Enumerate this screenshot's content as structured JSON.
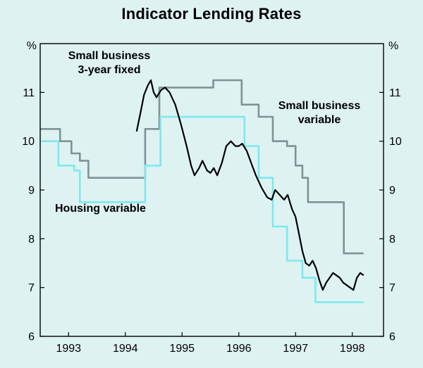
{
  "colors": {
    "background": "#def2f2",
    "plot_border": "#000000",
    "text": "#000000",
    "series_fixed_black": "#000000",
    "series_variable_gray": "#7f9296",
    "series_housing_cyan": "#7de9ed"
  },
  "annotations": {
    "fixed": {
      "line1": "Small business",
      "line2": "3-year fixed"
    },
    "variable": {
      "line1": "Small business",
      "line2": "variable"
    },
    "housing": {
      "line1": "Housing variable"
    }
  },
  "chart_data": {
    "type": "line",
    "title": "Indicator Lending Rates",
    "y_unit": "%",
    "x_range": [
      1992.5,
      1998.55
    ],
    "y_range": [
      6,
      12
    ],
    "y_ticks": [
      6,
      7,
      8,
      9,
      10,
      11
    ],
    "x_ticks": [
      1993,
      1994,
      1995,
      1996,
      1997,
      1998
    ],
    "x_tick_labels": [
      "1993",
      "1994",
      "1995",
      "1996",
      "1997",
      "1998"
    ],
    "grid": false,
    "legend": "in-plot text annotations",
    "series": [
      {
        "name": "Small business variable",
        "color_key": "series_variable_gray",
        "width": 2.6,
        "points": [
          [
            1992.5,
            10.25
          ],
          [
            1992.85,
            10.25
          ],
          [
            1992.85,
            10.0
          ],
          [
            1993.05,
            10.0
          ],
          [
            1993.05,
            9.75
          ],
          [
            1993.2,
            9.75
          ],
          [
            1993.2,
            9.6
          ],
          [
            1993.35,
            9.6
          ],
          [
            1993.35,
            9.25
          ],
          [
            1994.35,
            9.25
          ],
          [
            1994.35,
            10.25
          ],
          [
            1994.6,
            10.25
          ],
          [
            1994.6,
            11.1
          ],
          [
            1995.55,
            11.1
          ],
          [
            1995.55,
            11.25
          ],
          [
            1996.05,
            11.25
          ],
          [
            1996.05,
            10.75
          ],
          [
            1996.35,
            10.75
          ],
          [
            1996.35,
            10.5
          ],
          [
            1996.6,
            10.5
          ],
          [
            1996.6,
            10.0
          ],
          [
            1996.85,
            10.0
          ],
          [
            1996.85,
            9.9
          ],
          [
            1997.0,
            9.9
          ],
          [
            1997.0,
            9.5
          ],
          [
            1997.12,
            9.5
          ],
          [
            1997.12,
            9.25
          ],
          [
            1997.22,
            9.25
          ],
          [
            1997.22,
            8.75
          ],
          [
            1997.85,
            8.75
          ],
          [
            1997.85,
            7.7
          ],
          [
            1998.2,
            7.7
          ]
        ]
      },
      {
        "name": "Housing variable",
        "color_key": "series_housing_cyan",
        "width": 2.6,
        "points": [
          [
            1992.5,
            10.0
          ],
          [
            1992.82,
            10.0
          ],
          [
            1992.82,
            9.5
          ],
          [
            1993.1,
            9.5
          ],
          [
            1993.1,
            9.4
          ],
          [
            1993.2,
            9.4
          ],
          [
            1993.2,
            8.75
          ],
          [
            1994.35,
            8.75
          ],
          [
            1994.35,
            9.5
          ],
          [
            1994.62,
            9.5
          ],
          [
            1994.62,
            10.5
          ],
          [
            1996.1,
            10.5
          ],
          [
            1996.1,
            9.9
          ],
          [
            1996.35,
            9.9
          ],
          [
            1996.35,
            9.25
          ],
          [
            1996.6,
            9.25
          ],
          [
            1996.6,
            8.25
          ],
          [
            1996.85,
            8.25
          ],
          [
            1996.85,
            7.55
          ],
          [
            1997.12,
            7.55
          ],
          [
            1997.12,
            7.2
          ],
          [
            1997.35,
            7.2
          ],
          [
            1997.35,
            6.7
          ],
          [
            1998.2,
            6.7
          ]
        ]
      },
      {
        "name": "Small business 3-year fixed",
        "color_key": "series_fixed_black",
        "width": 2.2,
        "points": [
          [
            1994.2,
            10.2
          ],
          [
            1994.27,
            10.6
          ],
          [
            1994.33,
            10.95
          ],
          [
            1994.4,
            11.15
          ],
          [
            1994.45,
            11.25
          ],
          [
            1994.5,
            11.0
          ],
          [
            1994.55,
            10.9
          ],
          [
            1994.63,
            11.05
          ],
          [
            1994.7,
            11.1
          ],
          [
            1994.78,
            11.0
          ],
          [
            1994.88,
            10.75
          ],
          [
            1994.98,
            10.35
          ],
          [
            1995.08,
            9.9
          ],
          [
            1995.16,
            9.5
          ],
          [
            1995.22,
            9.3
          ],
          [
            1995.3,
            9.45
          ],
          [
            1995.36,
            9.6
          ],
          [
            1995.44,
            9.4
          ],
          [
            1995.5,
            9.35
          ],
          [
            1995.56,
            9.45
          ],
          [
            1995.62,
            9.3
          ],
          [
            1995.7,
            9.55
          ],
          [
            1995.78,
            9.9
          ],
          [
            1995.86,
            10.0
          ],
          [
            1995.94,
            9.9
          ],
          [
            1996.0,
            9.9
          ],
          [
            1996.06,
            9.95
          ],
          [
            1996.14,
            9.8
          ],
          [
            1996.22,
            9.55
          ],
          [
            1996.3,
            9.3
          ],
          [
            1996.4,
            9.05
          ],
          [
            1996.5,
            8.85
          ],
          [
            1996.58,
            8.8
          ],
          [
            1996.64,
            9.0
          ],
          [
            1996.72,
            8.9
          ],
          [
            1996.8,
            8.8
          ],
          [
            1996.86,
            8.9
          ],
          [
            1996.94,
            8.6
          ],
          [
            1997.0,
            8.45
          ],
          [
            1997.06,
            8.1
          ],
          [
            1997.12,
            7.75
          ],
          [
            1997.18,
            7.5
          ],
          [
            1997.24,
            7.45
          ],
          [
            1997.3,
            7.55
          ],
          [
            1997.36,
            7.4
          ],
          [
            1997.42,
            7.15
          ],
          [
            1997.48,
            6.95
          ],
          [
            1997.54,
            7.1
          ],
          [
            1997.6,
            7.2
          ],
          [
            1997.66,
            7.3
          ],
          [
            1997.72,
            7.25
          ],
          [
            1997.78,
            7.2
          ],
          [
            1997.84,
            7.1
          ],
          [
            1997.9,
            7.05
          ],
          [
            1997.96,
            7.0
          ],
          [
            1998.02,
            6.95
          ],
          [
            1998.08,
            7.2
          ],
          [
            1998.14,
            7.3
          ],
          [
            1998.2,
            7.25
          ]
        ]
      }
    ]
  }
}
